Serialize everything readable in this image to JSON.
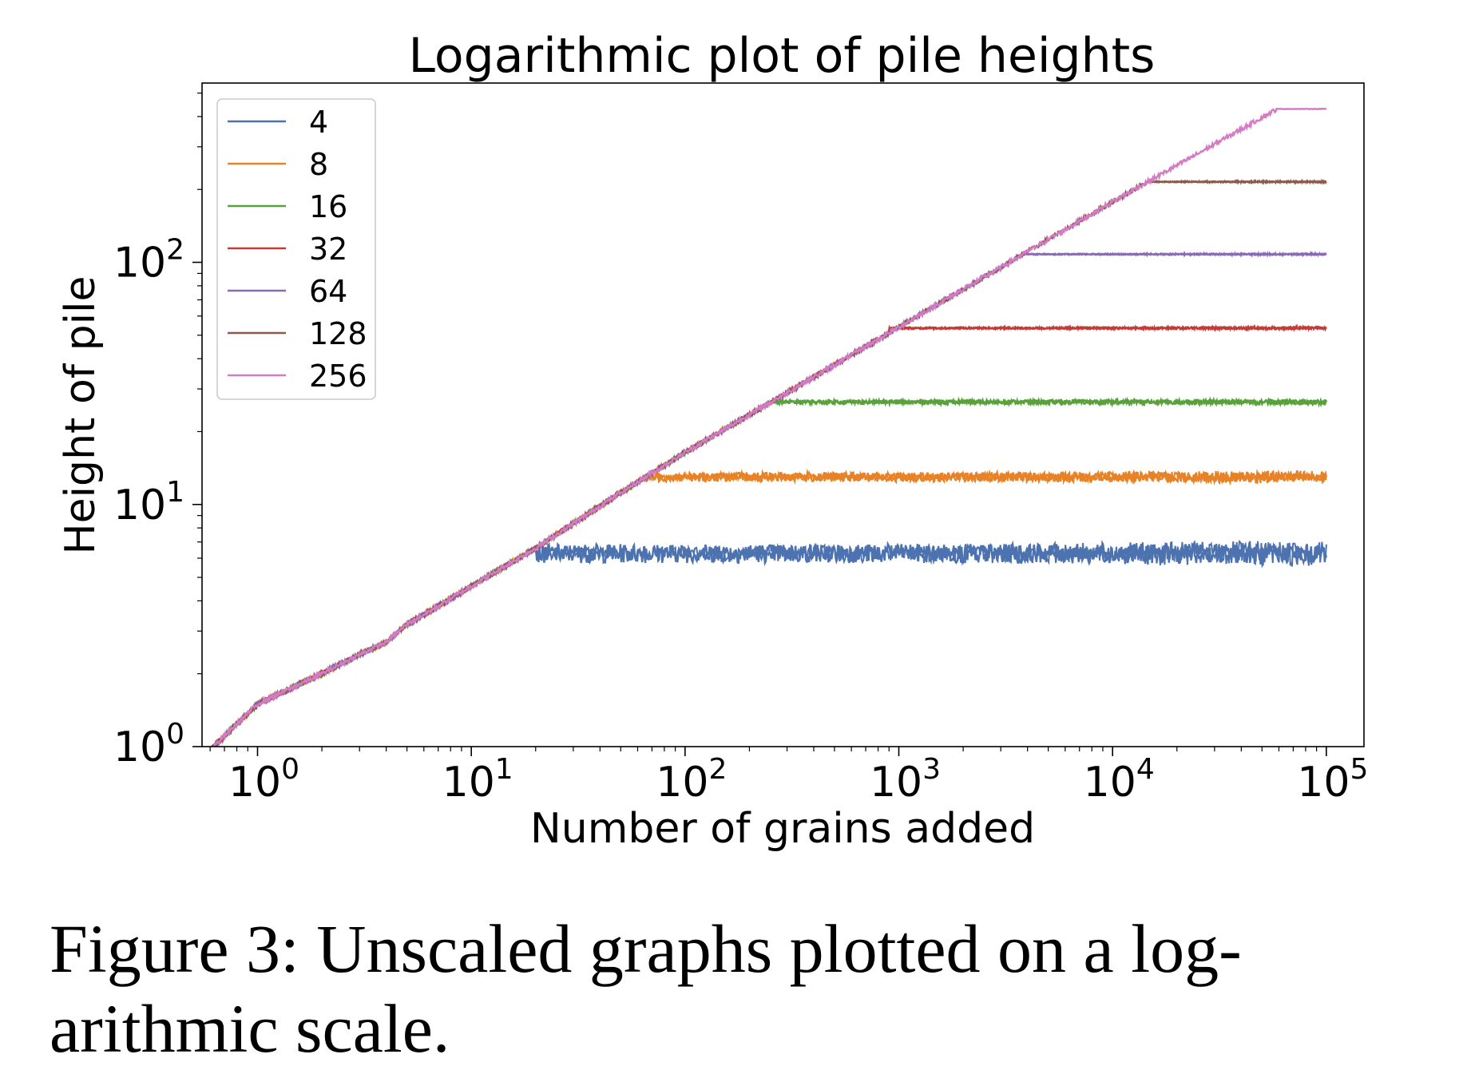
{
  "chart_data": {
    "type": "line",
    "title": "Logarithmic plot of pile heights",
    "xlabel": "Number of grains added",
    "ylabel": "Height of pile",
    "x_scale": "log",
    "y_scale": "log",
    "xlim": [
      0.55,
      150000
    ],
    "ylim": [
      1,
      550
    ],
    "x_ticks": [
      1,
      10,
      100,
      1000,
      10000,
      100000
    ],
    "x_tick_labels": [
      [
        "10",
        "0"
      ],
      [
        "10",
        "1"
      ],
      [
        "10",
        "2"
      ],
      [
        "10",
        "3"
      ],
      [
        "10",
        "4"
      ],
      [
        "10",
        "5"
      ]
    ],
    "y_ticks": [
      1,
      10,
      100
    ],
    "y_tick_labels": [
      [
        "10",
        "0"
      ],
      [
        "10",
        "1"
      ],
      [
        "10",
        "2"
      ]
    ],
    "grid": false,
    "legend_position": "top-left",
    "growth_curve": {
      "x": [
        0.55,
        1,
        2,
        3,
        4,
        5,
        7,
        10,
        20,
        50,
        100,
        1000,
        10000,
        100000
      ],
      "y": [
        0.9,
        1.5,
        2.0,
        2.4,
        2.7,
        3.2,
        3.8,
        4.6,
        6.6,
        11.2,
        16.4,
        54,
        178,
        560
      ]
    },
    "series": [
      {
        "name": "4",
        "color": "#4c72b0",
        "saturation_x": 20,
        "plateau": 6.3,
        "noise": 0.09
      },
      {
        "name": "8",
        "color": "#e88226",
        "saturation_x": 65,
        "plateau": 13.0,
        "noise": 0.045
      },
      {
        "name": "16",
        "color": "#59a13a",
        "saturation_x": 250,
        "plateau": 26.5,
        "noise": 0.02
      },
      {
        "name": "32",
        "color": "#c23b36",
        "saturation_x": 900,
        "plateau": 53.5,
        "noise": 0.01
      },
      {
        "name": "64",
        "color": "#8a68ba",
        "saturation_x": 3800,
        "plateau": 108,
        "noise": 0.006
      },
      {
        "name": "128",
        "color": "#8a5a4c",
        "saturation_x": 14500,
        "plateau": 215,
        "noise": 0.004
      },
      {
        "name": "256",
        "color": "#d57ac4",
        "saturation_x": 58000,
        "plateau": 430,
        "noise": 0.002
      }
    ]
  },
  "caption": {
    "line1": "Figure 3: Unscaled graphs plotted on a log-",
    "line2": "arithmic scale."
  }
}
